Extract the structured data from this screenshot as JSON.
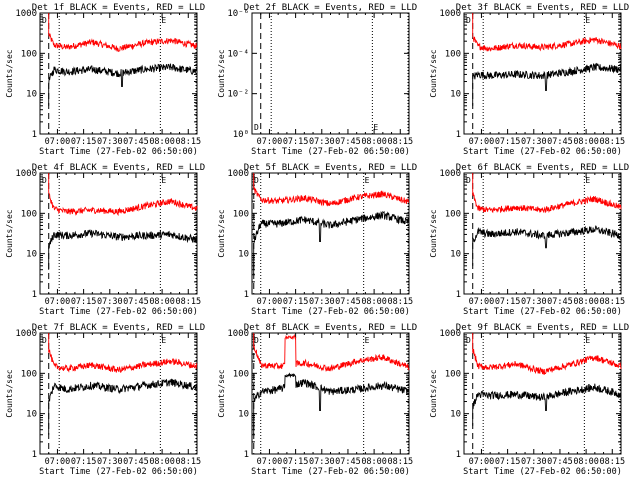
{
  "figure": {
    "xlabel": "Start Time (27-Feb-02 06:50:00)",
    "ylabel": "Counts/sec",
    "x_tick_labels": [
      "07:00",
      "07:15",
      "07:30",
      "07:45",
      "08:00",
      "08:15"
    ],
    "y_tick_labels": [
      "1",
      "10",
      "100",
      "1000"
    ],
    "y_tick_labels_det2": [
      "10⁰",
      "10⁻²",
      "10⁻⁴",
      "10⁻⁶"
    ],
    "corner_marker_left": "D",
    "corner_marker_right": "E",
    "colors": {
      "events": "#000000",
      "lld": "#ff0000",
      "axes": "#000000"
    }
  },
  "chart_data": [
    {
      "type": "line",
      "title": "Det 1f BLACK = Events, RED = LLD",
      "x_unit": "minutes after 06:50:00",
      "xlim": [
        0,
        90
      ],
      "ylim": [
        1,
        1000
      ],
      "yscale": "log",
      "xticks": [
        "07:00",
        "07:15",
        "07:30",
        "07:45",
        "08:00",
        "08:15"
      ],
      "markers": {
        "dashed": 5,
        "dotted": [
          11,
          69
        ],
        "dotted_end": 90
      },
      "series": [
        {
          "name": "LLD",
          "color": "#ff0000",
          "start_y": 1000,
          "base": [
            [
              5,
              300
            ],
            [
              8,
              160
            ],
            [
              15,
              140
            ],
            [
              30,
              190
            ],
            [
              45,
              130
            ],
            [
              60,
              180
            ],
            [
              75,
              210
            ],
            [
              90,
              150
            ]
          ]
        },
        {
          "name": "Events",
          "color": "#000000",
          "start_y": 5,
          "base": [
            [
              5,
              20
            ],
            [
              8,
              40
            ],
            [
              15,
              35
            ],
            [
              30,
              40
            ],
            [
              45,
              32
            ],
            [
              60,
              40
            ],
            [
              75,
              45
            ],
            [
              90,
              35
            ]
          ],
          "dips": [
            [
              47,
              15
            ]
          ]
        }
      ]
    },
    {
      "type": "line",
      "title": "Det 2f BLACK = Events, RED = LLD",
      "x_unit": "minutes after 06:50:00",
      "xlim": [
        0,
        90
      ],
      "ylim": [
        1,
        1e-06
      ],
      "yscale": "log",
      "xticks": [
        "07:00",
        "07:15",
        "07:30",
        "07:45",
        "08:00",
        "08:15"
      ],
      "markers": {
        "dashed": 5,
        "dotted": [
          11,
          69
        ],
        "dotted_end": 90
      },
      "series": []
    },
    {
      "type": "line",
      "title": "Det 3f BLACK = Events, RED = LLD",
      "x_unit": "minutes after 06:50:00",
      "xlim": [
        0,
        90
      ],
      "ylim": [
        1,
        1000
      ],
      "yscale": "log",
      "xticks": [
        "07:00",
        "07:15",
        "07:30",
        "07:45",
        "08:00",
        "08:15"
      ],
      "markers": {
        "dashed": 5,
        "dotted": [
          11,
          69
        ],
        "dotted_end": 90
      },
      "series": [
        {
          "name": "LLD",
          "color": "#ff0000",
          "start_y": 1000,
          "base": [
            [
              5,
              260
            ],
            [
              8,
              150
            ],
            [
              15,
              130
            ],
            [
              30,
              160
            ],
            [
              45,
              140
            ],
            [
              60,
              170
            ],
            [
              75,
              220
            ],
            [
              90,
              150
            ]
          ]
        },
        {
          "name": "Events",
          "color": "#000000",
          "start_y": 5,
          "base": [
            [
              5,
              25
            ],
            [
              8,
              30
            ],
            [
              15,
              28
            ],
            [
              30,
              30
            ],
            [
              45,
              28
            ],
            [
              60,
              35
            ],
            [
              75,
              45
            ],
            [
              90,
              40
            ]
          ],
          "dips": [
            [
              47,
              12
            ]
          ]
        }
      ]
    },
    {
      "type": "line",
      "title": "Det 4f BLACK = Events, RED = LLD",
      "x_unit": "minutes after 06:50:00",
      "xlim": [
        0,
        90
      ],
      "ylim": [
        1,
        1000
      ],
      "yscale": "log",
      "xticks": [
        "07:00",
        "07:15",
        "07:30",
        "07:45",
        "08:00",
        "08:15"
      ],
      "markers": {
        "dashed": 5,
        "dotted": [
          11,
          69
        ],
        "dotted_end": 90
      },
      "series": [
        {
          "name": "LLD",
          "color": "#ff0000",
          "start_y": 1000,
          "base": [
            [
              5,
              300
            ],
            [
              8,
              130
            ],
            [
              15,
              110
            ],
            [
              30,
              120
            ],
            [
              45,
              110
            ],
            [
              60,
              150
            ],
            [
              75,
              200
            ],
            [
              90,
              130
            ]
          ]
        },
        {
          "name": "Events",
          "color": "#000000",
          "start_y": 4,
          "base": [
            [
              5,
              15
            ],
            [
              8,
              30
            ],
            [
              15,
              28
            ],
            [
              30,
              32
            ],
            [
              45,
              26
            ],
            [
              60,
              28
            ],
            [
              75,
              30
            ],
            [
              90,
              22
            ]
          ],
          "dips": []
        }
      ]
    },
    {
      "type": "line",
      "title": "Det 5f BLACK = Events, RED = LLD",
      "x_unit": "minutes after 06:50:00",
      "xlim": [
        0,
        90
      ],
      "ylim": [
        1,
        1000
      ],
      "yscale": "log",
      "xticks": [
        "07:00",
        "07:15",
        "07:30",
        "07:45",
        "08:00",
        "08:15"
      ],
      "markers": {
        "dashed": 1,
        "dotted": [
          5,
          64
        ],
        "dotted_end": 90
      },
      "series": [
        {
          "name": "LLD",
          "color": "#ff0000",
          "start_y": 1000,
          "base": [
            [
              1,
              400
            ],
            [
              5,
              220
            ],
            [
              15,
              200
            ],
            [
              30,
              240
            ],
            [
              45,
              170
            ],
            [
              60,
              250
            ],
            [
              75,
              300
            ],
            [
              90,
              190
            ]
          ]
        },
        {
          "name": "Events",
          "color": "#000000",
          "start_y": 3,
          "base": [
            [
              1,
              20
            ],
            [
              5,
              55
            ],
            [
              15,
              55
            ],
            [
              30,
              70
            ],
            [
              45,
              50
            ],
            [
              60,
              70
            ],
            [
              75,
              90
            ],
            [
              90,
              60
            ]
          ],
          "dips": [
            [
              39,
              20
            ]
          ]
        }
      ]
    },
    {
      "type": "line",
      "title": "Det 6f BLACK = Events, RED = LLD",
      "x_unit": "minutes after 06:50:00",
      "xlim": [
        0,
        90
      ],
      "ylim": [
        1,
        1000
      ],
      "yscale": "log",
      "xticks": [
        "07:00",
        "07:15",
        "07:30",
        "07:45",
        "08:00",
        "08:15"
      ],
      "markers": {
        "dashed": 5,
        "dotted": [
          11,
          69
        ],
        "dotted_end": 90
      },
      "series": [
        {
          "name": "LLD",
          "color": "#ff0000",
          "start_y": 1000,
          "base": [
            [
              5,
              300
            ],
            [
              8,
              130
            ],
            [
              15,
              120
            ],
            [
              30,
              140
            ],
            [
              45,
              120
            ],
            [
              60,
              170
            ],
            [
              75,
              230
            ],
            [
              90,
              140
            ]
          ]
        },
        {
          "name": "Events",
          "color": "#000000",
          "start_y": 5,
          "base": [
            [
              5,
              20
            ],
            [
              8,
              35
            ],
            [
              15,
              30
            ],
            [
              30,
              35
            ],
            [
              45,
              28
            ],
            [
              60,
              33
            ],
            [
              75,
              40
            ],
            [
              90,
              28
            ]
          ],
          "dips": [
            [
              47,
              14
            ]
          ]
        }
      ]
    },
    {
      "type": "line",
      "title": "Det 7f BLACK = Events, RED = LLD",
      "x_unit": "minutes after 06:50:00",
      "xlim": [
        0,
        90
      ],
      "ylim": [
        1,
        1000
      ],
      "yscale": "log",
      "xticks": [
        "07:00",
        "07:15",
        "07:30",
        "07:45",
        "08:00",
        "08:15"
      ],
      "markers": {
        "dashed": 5,
        "dotted": [
          11,
          69
        ],
        "dotted_end": 90
      },
      "series": [
        {
          "name": "LLD",
          "color": "#ff0000",
          "start_y": 1000,
          "base": [
            [
              5,
              400
            ],
            [
              8,
              150
            ],
            [
              15,
              130
            ],
            [
              30,
              160
            ],
            [
              45,
              120
            ],
            [
              60,
              160
            ],
            [
              75,
              200
            ],
            [
              90,
              150
            ]
          ]
        },
        {
          "name": "Events",
          "color": "#000000",
          "start_y": 3,
          "base": [
            [
              5,
              20
            ],
            [
              8,
              50
            ],
            [
              15,
              40
            ],
            [
              30,
              50
            ],
            [
              45,
              40
            ],
            [
              60,
              50
            ],
            [
              75,
              60
            ],
            [
              90,
              45
            ]
          ],
          "dips": []
        }
      ]
    },
    {
      "type": "line",
      "title": "Det 8f BLACK = Events, RED = LLD",
      "x_unit": "minutes after 06:50:00",
      "xlim": [
        0,
        90
      ],
      "ylim": [
        1,
        1000
      ],
      "yscale": "log",
      "xticks": [
        "07:00",
        "07:15",
        "07:30",
        "07:45",
        "08:00",
        "08:15"
      ],
      "markers": {
        "dashed": 1,
        "dotted": [
          5,
          64
        ],
        "dotted_end": 90
      },
      "series": [
        {
          "name": "LLD",
          "color": "#ff0000",
          "start_y": 1000,
          "base": [
            [
              1,
              500
            ],
            [
              5,
              160
            ],
            [
              15,
              150
            ],
            [
              30,
              180
            ],
            [
              45,
              130
            ],
            [
              60,
              200
            ],
            [
              75,
              250
            ],
            [
              90,
              140
            ]
          ],
          "bumps": [
            [
              19,
              25,
              800
            ]
          ]
        },
        {
          "name": "Events",
          "color": "#000000",
          "start_y": 3,
          "base": [
            [
              1,
              20
            ],
            [
              5,
              35
            ],
            [
              15,
              40
            ],
            [
              30,
              60
            ],
            [
              45,
              35
            ],
            [
              60,
              40
            ],
            [
              75,
              50
            ],
            [
              90,
              35
            ]
          ],
          "bumps": [
            [
              19,
              25,
              90
            ]
          ],
          "dips": [
            [
              39,
              12
            ]
          ]
        }
      ]
    },
    {
      "type": "line",
      "title": "Det 9f BLACK = Events, RED = LLD",
      "x_unit": "minutes after 06:50:00",
      "xlim": [
        0,
        90
      ],
      "ylim": [
        1,
        1000
      ],
      "yscale": "log",
      "xticks": [
        "07:00",
        "07:15",
        "07:30",
        "07:45",
        "08:00",
        "08:15"
      ],
      "markers": {
        "dashed": 5,
        "dotted": [
          11,
          69
        ],
        "dotted_end": 90
      },
      "series": [
        {
          "name": "LLD",
          "color": "#ff0000",
          "start_y": 1000,
          "base": [
            [
              5,
              400
            ],
            [
              8,
              150
            ],
            [
              15,
              140
            ],
            [
              30,
              170
            ],
            [
              45,
              110
            ],
            [
              60,
              160
            ],
            [
              75,
              250
            ],
            [
              90,
              150
            ]
          ]
        },
        {
          "name": "Events",
          "color": "#000000",
          "start_y": 5,
          "base": [
            [
              5,
              15
            ],
            [
              8,
              30
            ],
            [
              15,
              28
            ],
            [
              30,
              30
            ],
            [
              45,
              25
            ],
            [
              60,
              35
            ],
            [
              75,
              45
            ],
            [
              90,
              30
            ]
          ],
          "dips": [
            [
              47,
              12
            ]
          ]
        }
      ]
    }
  ]
}
